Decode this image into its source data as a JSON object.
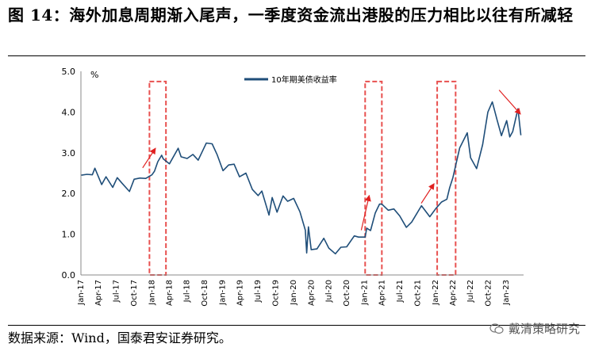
{
  "figure": {
    "title": "图 14：海外加息周期渐入尾声，一季度资金流出港股的压力相比以往有所减轻",
    "source": "数据来源：Wind，国泰君安证券研究。",
    "watermark": "戴清策略研究"
  },
  "chart_data": {
    "type": "line",
    "title": "",
    "ylabel": "%",
    "xlabel": "",
    "ylim": [
      0.0,
      5.0
    ],
    "yticks": [
      "0.0",
      "1.0",
      "2.0",
      "3.0",
      "4.0",
      "5.0"
    ],
    "xticks": [
      "Jan-17",
      "Apr-17",
      "Jul-17",
      "Oct-17",
      "Jan-18",
      "Apr-18",
      "Jul-18",
      "Oct-18",
      "Jan-19",
      "Apr-19",
      "Jul-19",
      "Oct-19",
      "Jan-20",
      "Apr-20",
      "Jul-20",
      "Oct-20",
      "Jan-21",
      "Apr-21",
      "Jul-21",
      "Oct-21",
      "Jan-22",
      "Apr-22",
      "Jul-22",
      "Oct-22",
      "Jan-23"
    ],
    "legend": {
      "placement": "top-center"
    },
    "grid": false,
    "colors": {
      "line": "#1f4e79",
      "highlight": "#e8504f",
      "arrow": "#e02020"
    },
    "series": [
      {
        "name": "10年期美债收益率",
        "x": [
          "2017-01-03",
          "2017-02-01",
          "2017-03-01",
          "2017-03-14",
          "2017-04-18",
          "2017-05-10",
          "2017-06-14",
          "2017-07-07",
          "2017-08-01",
          "2017-09-08",
          "2017-10-02",
          "2017-11-01",
          "2017-12-01",
          "2018-01-02",
          "2018-01-15",
          "2018-02-01",
          "2018-02-21",
          "2018-03-01",
          "2018-04-02",
          "2018-05-17",
          "2018-06-01",
          "2018-07-02",
          "2018-08-01",
          "2018-08-28",
          "2018-09-14",
          "2018-10-09",
          "2018-11-08",
          "2018-12-03",
          "2019-01-03",
          "2019-02-01",
          "2019-03-01",
          "2019-03-29",
          "2019-05-01",
          "2019-06-03",
          "2019-07-03",
          "2019-07-22",
          "2019-08-28",
          "2019-09-13",
          "2019-10-08",
          "2019-11-08",
          "2019-12-02",
          "2020-01-02",
          "2020-02-03",
          "2020-03-02",
          "2020-03-09",
          "2020-03-18",
          "2020-04-01",
          "2020-05-01",
          "2020-06-05",
          "2020-07-01",
          "2020-08-04",
          "2020-09-01",
          "2020-10-01",
          "2020-11-09",
          "2020-12-01",
          "2021-01-04",
          "2021-01-12",
          "2021-02-01",
          "2021-02-25",
          "2021-03-19",
          "2021-03-31",
          "2021-05-03",
          "2021-06-01",
          "2021-07-01",
          "2021-08-04",
          "2021-09-01",
          "2021-10-21",
          "2021-12-03",
          "2022-01-03",
          "2022-02-01",
          "2022-03-01",
          "2022-03-15",
          "2022-04-01",
          "2022-05-06",
          "2022-06-14",
          "2022-07-01",
          "2022-08-01",
          "2022-09-01",
          "2022-09-28",
          "2022-10-21",
          "2022-11-15",
          "2022-12-07",
          "2023-01-03",
          "2023-01-19",
          "2023-02-03",
          "2023-03-02",
          "2023-03-17"
        ],
        "values": [
          2.45,
          2.47,
          2.46,
          2.62,
          2.22,
          2.41,
          2.15,
          2.39,
          2.25,
          2.05,
          2.35,
          2.38,
          2.37,
          2.46,
          2.55,
          2.78,
          2.94,
          2.85,
          2.73,
          3.11,
          2.9,
          2.86,
          2.96,
          2.82,
          2.99,
          3.24,
          3.22,
          2.96,
          2.56,
          2.7,
          2.72,
          2.41,
          2.5,
          2.1,
          1.95,
          2.06,
          1.47,
          1.9,
          1.54,
          1.94,
          1.81,
          1.88,
          1.55,
          1.1,
          0.54,
          1.18,
          0.62,
          0.64,
          0.9,
          0.66,
          0.52,
          0.68,
          0.69,
          0.96,
          0.93,
          0.93,
          1.15,
          1.09,
          1.52,
          1.74,
          1.74,
          1.59,
          1.62,
          1.45,
          1.17,
          1.3,
          1.7,
          1.43,
          1.63,
          1.79,
          1.86,
          2.14,
          2.39,
          3.12,
          3.49,
          2.88,
          2.61,
          3.2,
          4.0,
          4.25,
          3.8,
          3.42,
          3.79,
          3.39,
          3.52,
          4.08,
          3.43
        ]
      }
    ],
    "highlights": [
      {
        "from": "2017-12-20",
        "to": "2018-03-15"
      },
      {
        "from": "2021-01-04",
        "to": "2021-03-31"
      },
      {
        "from": "2022-01-10",
        "to": "2022-04-15"
      }
    ]
  }
}
